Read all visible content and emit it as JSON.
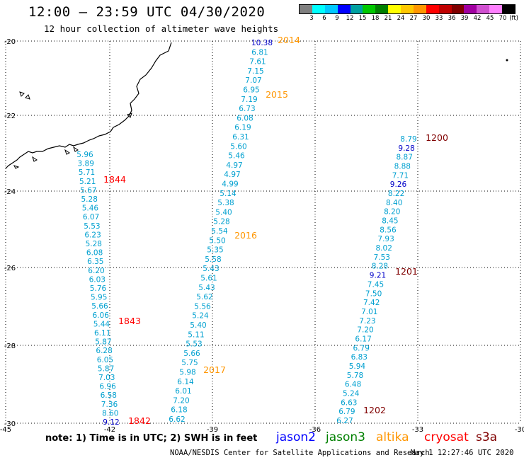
{
  "header": {
    "title": "12:00 – 23:59 UTC 04/30/2020",
    "subtitle": "12 hour collection of altimeter wave heights"
  },
  "colorbar": {
    "labels": [
      "3",
      "6",
      "9",
      "12",
      "15",
      "18",
      "21",
      "24",
      "27",
      "30",
      "33",
      "36",
      "39",
      "42",
      "45",
      "70"
    ],
    "unit": "(ft)",
    "colors": [
      "#808080",
      "#00ffff",
      "#00c8ff",
      "#0000ff",
      "#00a0a0",
      "#00c800",
      "#008000",
      "#ffff00",
      "#ffc800",
      "#ff9600",
      "#ff0000",
      "#c00000",
      "#800000",
      "#a000a0",
      "#d050d0",
      "#ff80ff",
      "#000000"
    ]
  },
  "axes": {
    "lat_labels": [
      "-20",
      "-22",
      "-24",
      "-26",
      "-28",
      "-30"
    ],
    "lon_labels": [
      "-45",
      "-42",
      "-39",
      "-36",
      "-33",
      "-30"
    ]
  },
  "tracks": [
    {
      "name": "pass-2014-2017",
      "color": "#00a0d0",
      "x_start": 370,
      "y_start": 60,
      "x_end": 250,
      "y_end": 592,
      "values": [
        "10.38",
        "6.81",
        "7.61",
        "7.15",
        "7.07",
        "6.95",
        "7.19",
        "6.73",
        "6.08",
        "6.19",
        "6.31",
        "5.60",
        "5.46",
        "4.97",
        "4.97",
        "4.99",
        "5.14",
        "5.38",
        "5.40",
        "5.28",
        "5.54",
        "5.50",
        "5.35",
        "5.58",
        "5.43",
        "5.61",
        "5.43",
        "5.62",
        "5.56",
        "5.24",
        "5.40",
        "5.11",
        "5.53",
        "5.66",
        "5.75",
        "5.98",
        "6.14",
        "6.01",
        "7.20",
        "6.18",
        "6.62"
      ],
      "blue_indices": [
        0
      ]
    },
    {
      "name": "pass-1842-1844",
      "color": "#00a0d0",
      "x_start": 120,
      "y_start": 218,
      "x_end": 157,
      "y_end": 596,
      "values": [
        "5.96",
        "3.89",
        "5.71",
        "5.21",
        "5.67",
        "5.28",
        "5.46",
        "6.07",
        "5.53",
        "6.23",
        "5.28",
        "6.08",
        "6.35",
        "6.20",
        "6.03",
        "5.76",
        "5.95",
        "5.66",
        "6.06",
        "5.44",
        "6.11",
        "5.87",
        "6.28",
        "6.05",
        "5.87",
        "7.03",
        "6.96",
        "6.58",
        "7.36",
        "8.60",
        "9.12"
      ],
      "blue_indices": [
        30
      ]
    },
    {
      "name": "pass-1200-1202",
      "color": "#00a0d0",
      "x_start": 577,
      "y_start": 196,
      "x_end": 487,
      "y_end": 594,
      "values": [
        "8.79",
        "9.28",
        "8.87",
        "8.88",
        "7.71",
        "9.26",
        "8.22",
        "8.40",
        "8.20",
        "8.45",
        "8.56",
        "7.93",
        "8.02",
        "7.53",
        "8.28",
        "9.21",
        "7.45",
        "7.50",
        "7.42",
        "7.01",
        "7.23",
        "7.20",
        "6.17",
        "6.79",
        "6.83",
        "5.94",
        "5.78",
        "6.48",
        "5.24",
        "6.63",
        "6.79",
        "6.27"
      ],
      "blue_indices": [
        1,
        5,
        15
      ]
    }
  ],
  "time_labels": [
    {
      "text": "2014",
      "color": "#ff9600"
    },
    {
      "text": "2015",
      "color": "#ff9600"
    },
    {
      "text": "2016",
      "color": "#ff9600"
    },
    {
      "text": "2017",
      "color": "#ff9600"
    },
    {
      "text": "1844",
      "color": "#ff0000"
    },
    {
      "text": "1843",
      "color": "#ff0000"
    },
    {
      "text": "1842",
      "color": "#ff0000"
    },
    {
      "text": "1200",
      "color": "#800000"
    },
    {
      "text": "1201",
      "color": "#800000"
    },
    {
      "text": "1202",
      "color": "#800000"
    }
  ],
  "footer": {
    "note": "note: 1) Time is in UTC; 2) SWH is in feet",
    "legend": [
      {
        "label": "jason2",
        "color": "#0000ff"
      },
      {
        "label": "jason3",
        "color": "#008000"
      },
      {
        "label": "altika",
        "color": "#ff9600"
      },
      {
        "label": "cryosat",
        "color": "#ff0000"
      },
      {
        "label": "s3a",
        "color": "#800000"
      }
    ],
    "credit": "NOAA/NESDIS Center for Satellite Applications and Research",
    "timestamp": "May  1 12:27:46 UTC 2020"
  }
}
